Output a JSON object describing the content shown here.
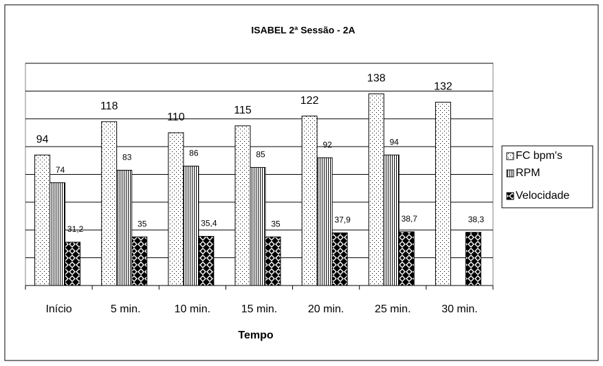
{
  "chart_data": {
    "type": "bar",
    "title": "ISABEL 2ª Sessão - 2A",
    "x_label": "Tempo",
    "categories": [
      "Início",
      "5 min.",
      "10 min.",
      "15 min.",
      "20 min.",
      "25 min.",
      "30 min."
    ],
    "series": [
      {
        "name": "FC bpm's",
        "color": "#000000",
        "pattern": "dots",
        "values": [
          94,
          118,
          110,
          115,
          122,
          138,
          132
        ]
      },
      {
        "name": "RPM",
        "color": "#000000",
        "pattern": "vertical",
        "values": [
          74,
          83,
          86,
          85,
          92,
          94,
          null
        ]
      },
      {
        "name": "Velocidade",
        "color": "#000000",
        "pattern": "checker",
        "values": [
          31.2,
          35,
          35.4,
          35,
          37.9,
          38.7,
          38.3
        ],
        "value_labels": [
          "31,2",
          "35",
          "35,4",
          "35",
          "37,9",
          "38,7",
          "38,3"
        ]
      }
    ],
    "ylim": [
      0,
      160
    ],
    "yticks": [
      0,
      20,
      40,
      60,
      80,
      100,
      120,
      140,
      160
    ],
    "grid": true,
    "legend": "right"
  }
}
